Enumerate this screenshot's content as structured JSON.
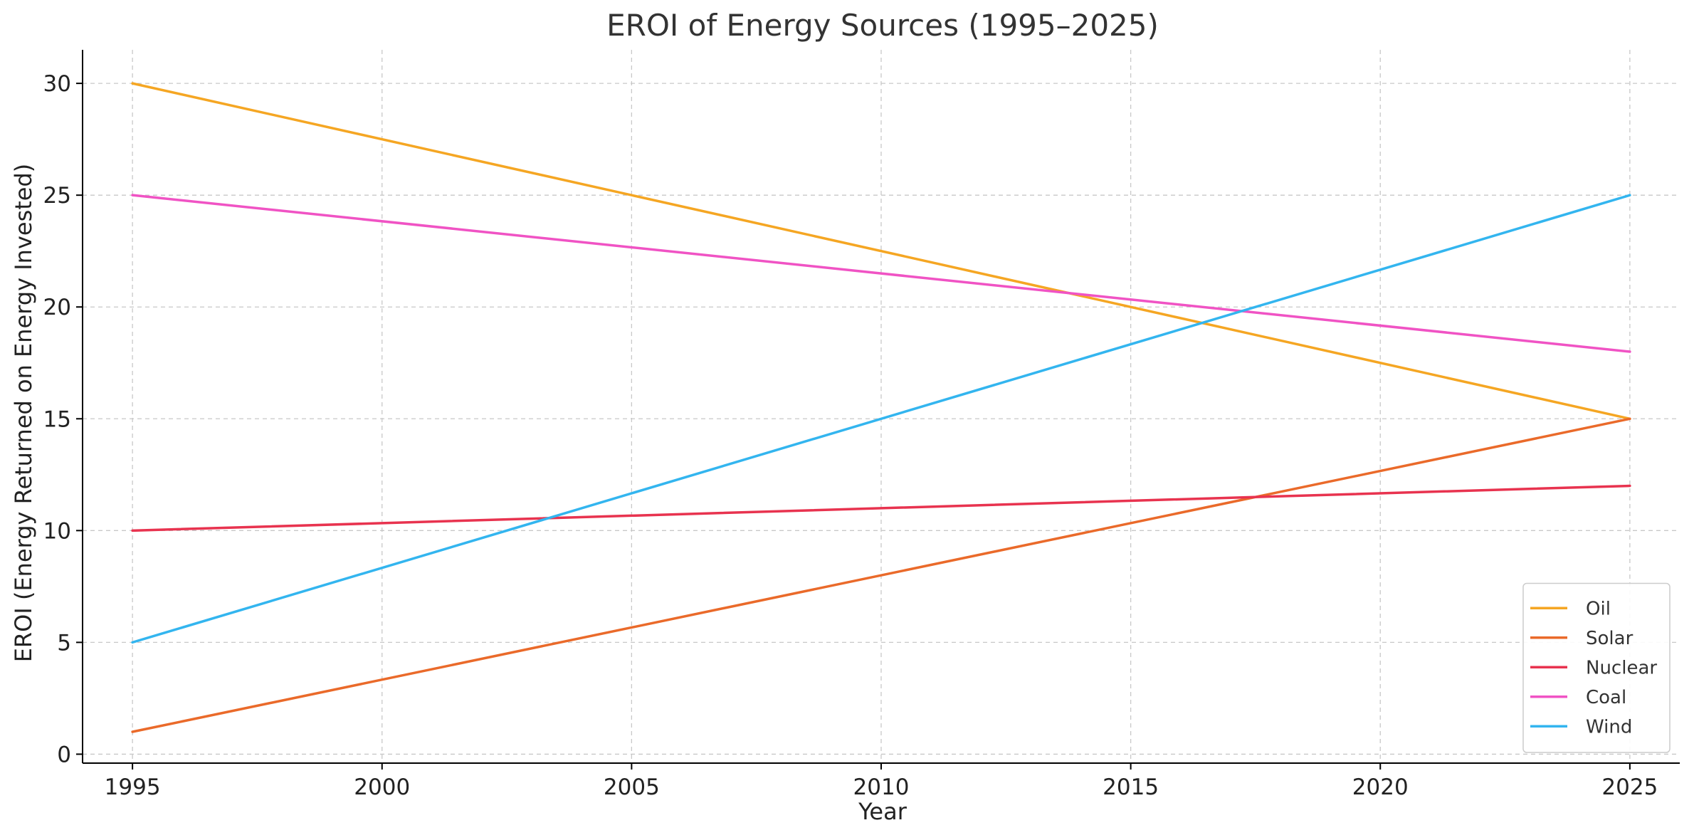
{
  "chart_data": {
    "type": "line",
    "title": "EROI of Energy Sources (1995–2025)",
    "xlabel": "Year",
    "ylabel": "EROI (Energy Returned on Energy Invested)",
    "x": [
      1995,
      2025
    ],
    "xlim": [
      1994,
      2026
    ],
    "ylim": [
      -0.4,
      31.5
    ],
    "xticks": [
      "1995",
      "2000",
      "2005",
      "2010",
      "2015",
      "2020",
      "2025"
    ],
    "yticks": [
      "0",
      "5",
      "10",
      "15",
      "20",
      "25",
      "30"
    ],
    "grid": true,
    "legend_position": "bottom-right",
    "series": [
      {
        "name": "Oil",
        "color": "#f5a623",
        "values": [
          30,
          15
        ]
      },
      {
        "name": "Solar",
        "color": "#ea6a2a",
        "values": [
          1,
          15
        ]
      },
      {
        "name": "Nuclear",
        "color": "#e8334f",
        "values": [
          10,
          12
        ]
      },
      {
        "name": "Coal",
        "color": "#f053c4",
        "values": [
          25,
          18
        ]
      },
      {
        "name": "Wind",
        "color": "#33b5ef",
        "values": [
          5,
          25
        ]
      }
    ]
  }
}
